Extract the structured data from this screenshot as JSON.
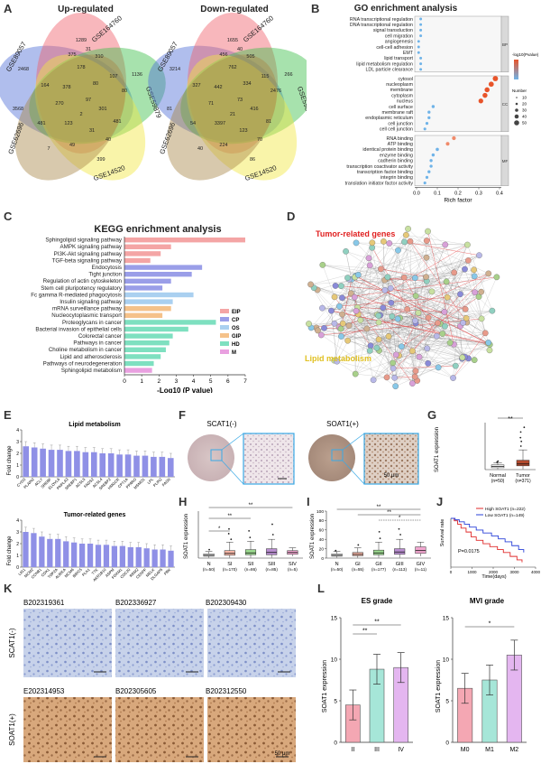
{
  "panels": {
    "A": {
      "label": "A",
      "up_title": "Up-regulated",
      "down_title": "Down-regulated",
      "set_names": [
        "GSE89057",
        "GSE164760",
        "GSE59879",
        "GSE14520",
        "GSE62696"
      ],
      "up_counts": [
        "1289",
        "2468",
        "375",
        "310",
        "31",
        "1136",
        "178",
        "107",
        "80",
        "164",
        "378",
        "80",
        "3568",
        "270",
        "97",
        "301",
        "481",
        "481",
        "123",
        "31",
        "40",
        "399",
        "49",
        "7",
        "2"
      ],
      "down_counts": [
        "1655",
        "3214",
        "456",
        "505",
        "40",
        "266",
        "762",
        "115",
        "2476",
        "327",
        "442",
        "334",
        "81",
        "71",
        "73",
        "416",
        "81",
        "54",
        "3397",
        "123",
        "70",
        "86",
        "224",
        "40",
        "21"
      ]
    },
    "B": {
      "label": "B",
      "title": "GO enrichment analysis",
      "xlabel": "Rich factor",
      "terms": [
        "RNA transcriptional regulation",
        "DNA transcriptional regulation",
        "signal transduction",
        "cell migration",
        "angiogenesis",
        "cell-cell adhesion",
        "EMT",
        "lipid transport",
        "lipid metabolism regulation",
        "LDL particle clearance",
        "cytosol",
        "nucleoplasm",
        "membrane",
        "cytoplasm",
        "nucleus",
        "cell surface",
        "membrane raft",
        "endoplasmic reticulum",
        "cell junction",
        "cell cell junction",
        "RNA binding",
        "ATP binding",
        "identical protein binding",
        "enzyme binding",
        "cadherin binding",
        "transcription coactivator activity",
        "transcription factor binding",
        "integrin binding",
        "translation initiator factor activity"
      ],
      "ticks": [
        "0.0",
        "0.1",
        "0.2",
        "0.3",
        "0.4"
      ],
      "groups": [
        "BP",
        "CC",
        "MF"
      ],
      "legend_title_p": "-log10(Pvalue)",
      "legend_title_n": "Number",
      "legend_numbers": [
        "10",
        "20",
        "30",
        "40",
        "50"
      ]
    },
    "C": {
      "label": "C",
      "title": "KEGG enrichment analysis",
      "xlabel": "-Log10 (P value)",
      "ticks": [
        "0",
        "1",
        "2",
        "3",
        "4",
        "5",
        "6",
        "7"
      ],
      "legend": [
        {
          "name": "EIP",
          "color": "#f4a5a5"
        },
        {
          "name": "CP",
          "color": "#9a9ee8"
        },
        {
          "name": "OS",
          "color": "#aad0f0"
        },
        {
          "name": "GIP",
          "color": "#f5c28a"
        },
        {
          "name": "HD",
          "color": "#7ee0c0"
        },
        {
          "name": "M",
          "color": "#e9a0e0"
        }
      ]
    },
    "D": {
      "label": "D",
      "tumor_label": "Tumor-related genes",
      "lipid_label": "Lipid metabolism"
    },
    "E": {
      "label": "E",
      "title1": "Lipid metabolism",
      "title2": "Tumor-related genes",
      "ylabel": "Fold change",
      "yticks1": [
        "0",
        "1",
        "2",
        "3",
        "4"
      ],
      "yticks2": [
        "0",
        "1",
        "2",
        "3",
        "4"
      ]
    },
    "F": {
      "label": "F",
      "neg_label": "SCAT1(-)",
      "pos_label": "SOAT1(+)",
      "scale": "50 μm"
    },
    "G": {
      "label": "G",
      "ylabel": "SOAT1 expression",
      "sig": "**",
      "groups": [
        "Normal\n(n=50)",
        "Tumor\n(n=371)"
      ],
      "group_names": [
        "Normal",
        "Tumor"
      ],
      "group_ns": [
        "(n=50)",
        "(n=371)"
      ]
    },
    "H": {
      "label": "H",
      "ylabel": "SOAT1 expression",
      "group_names": [
        "N",
        "SI",
        "SII",
        "SIII",
        "SIV"
      ],
      "group_ns": [
        "(n=50)",
        "(n=170)",
        "(n=86)",
        "(n=85)",
        "(n=5)"
      ],
      "sigs": [
        "**",
        "**",
        "*"
      ]
    },
    "I": {
      "label": "I",
      "ylabel": "SOAT1 expression",
      "group_names": [
        "N",
        "GI",
        "GII",
        "GIII",
        "GIV"
      ],
      "group_ns": [
        "(n=50)",
        "(n=55)",
        "(n=177)",
        "(n=113)",
        "(n=11)"
      ],
      "sigs": [
        "**",
        "**",
        "*"
      ],
      "yticks": [
        "0",
        "20",
        "40",
        "60",
        "80",
        "100"
      ]
    },
    "J": {
      "label": "J",
      "ylabel": "Survival rate",
      "xlabel": "Time(days)",
      "legend_high": "High SOAT1 (n=222)",
      "legend_low": "Low SOAT1 (n=149)",
      "pvalue": "P=0.0175",
      "xticks": [
        "0",
        "1000",
        "2000",
        "3000",
        "4000"
      ]
    },
    "K": {
      "label": "K",
      "row_neg": "SCAT1(-)",
      "row_pos": "SOAT1(+)",
      "ids_top": [
        "B202319361",
        "B202336927",
        "B202309430"
      ],
      "ids_bottom": [
        "E202314953",
        "B202305605",
        "B202312550"
      ],
      "scale": "50 μm"
    },
    "L": {
      "label": "L",
      "title1": "ES grade",
      "title2": "MVI grade",
      "ylabel": "SOAT1 expression",
      "cats1": [
        "II",
        "III",
        "IV"
      ],
      "cats2": [
        "M0",
        "M1",
        "M2"
      ],
      "sig1": [
        "**",
        "**"
      ],
      "sig2": [
        "*"
      ],
      "yticks": [
        "0",
        "5",
        "10",
        "15"
      ]
    }
  },
  "chart_data": [
    {
      "type": "bar",
      "id": "C",
      "title": "KEGG enrichment analysis",
      "xlabel": "-Log10 (P value)",
      "orientation": "horizontal",
      "categories": [
        "Sphingolipid signaling pathway",
        "AMPK signaling pathway",
        "PI3K-Akt signaling pathway",
        "TGF-beta signaling pathway",
        "Endocytosis",
        "Tight junction",
        "Regulation of actin cytoskeleton",
        "Stem cell pluripotency regulatory",
        "Fc gamma R-mediated phagocytosis",
        "Insulin signaling pathway",
        "mRNA surveillance pathway",
        "Nucleocytoplasmic transport",
        "Proteoglycans in cancer",
        "Bacterial invasion of epithelial cells",
        "Colorectal cancer",
        "Pathways in cancer",
        "Choline metabolism in cancer",
        "Lipid and atherosclerosis",
        "Pathways of neurodegeneration",
        "Sphingolipid metabolism"
      ],
      "values": [
        7.0,
        2.7,
        2.1,
        1.5,
        4.5,
        3.9,
        2.7,
        2.2,
        4.0,
        2.8,
        2.7,
        2.2,
        5.3,
        3.7,
        2.8,
        2.6,
        2.4,
        2.1,
        1.7,
        1.6
      ],
      "groups": [
        "EIP",
        "EIP",
        "EIP",
        "EIP",
        "CP",
        "CP",
        "CP",
        "CP",
        "OS",
        "OS",
        "GIP",
        "GIP",
        "HD",
        "HD",
        "HD",
        "HD",
        "HD",
        "HD",
        "HD",
        "M"
      ],
      "xlim": [
        0,
        7
      ]
    },
    {
      "type": "scatter",
      "id": "B",
      "title": "GO enrichment analysis",
      "xlabel": "Rich factor",
      "categories": [
        "RNA transcriptional regulation",
        "DNA transcriptional regulation",
        "signal transduction",
        "cell migration",
        "angiogenesis",
        "cell-cell adhesion",
        "EMT",
        "lipid transport",
        "lipid metabolism regulation",
        "LDL particle clearance",
        "cytosol",
        "nucleoplasm",
        "membrane",
        "cytoplasm",
        "nucleus",
        "cell surface",
        "membrane raft",
        "endoplasmic reticulum",
        "cell junction",
        "cell cell junction",
        "RNA binding",
        "ATP binding",
        "identical protein binding",
        "enzyme binding",
        "cadherin binding",
        "transcription coactivator activity",
        "transcription factor binding",
        "integrin binding",
        "translation initiator factor activity"
      ],
      "x": [
        0.02,
        0.02,
        0.02,
        0.02,
        0.01,
        0.01,
        0.01,
        0.02,
        0.02,
        0.02,
        0.38,
        0.36,
        0.34,
        0.33,
        0.31,
        0.08,
        0.06,
        0.06,
        0.05,
        0.04,
        0.18,
        0.15,
        0.1,
        0.08,
        0.07,
        0.07,
        0.06,
        0.05,
        0.04
      ],
      "xlim": [
        0.0,
        0.4
      ]
    },
    {
      "type": "bar",
      "id": "E1",
      "title": "Lipid metabolism",
      "ylabel": "Fold change",
      "categories": [
        "CYGS",
        "PLAIN2",
        "ACLY",
        "SREBF",
        "ELOVL6",
        "PNPLA3",
        "SREBP1",
        "ACSL5",
        "FADS2",
        "ACSL4",
        "SREBP2",
        "HMGCR",
        "CPT1A",
        "PPARG",
        "MSMO1",
        "LPL",
        "PLIN2",
        "FASN"
      ],
      "values": [
        2.6,
        2.5,
        2.4,
        2.3,
        2.3,
        2.2,
        2.2,
        2.1,
        2.1,
        2.0,
        2.0,
        1.9,
        1.9,
        1.8,
        1.8,
        1.7,
        1.7,
        1.6
      ],
      "ylim": [
        0,
        4
      ]
    },
    {
      "type": "bar",
      "id": "E2",
      "title": "Tumor-related genes",
      "ylabel": "Fold change",
      "categories": [
        "LIG1",
        "MCM2",
        "CCNB1",
        "CDK1",
        "TOP2A",
        "AURKA",
        "MCM6",
        "BIRC5",
        "PLK1",
        "TTK",
        "AKR1B10",
        "ASPM",
        "FOXM1",
        "CDC20",
        "RRM2",
        "CENPF",
        "MELK",
        "DLGAP5",
        "PBK"
      ],
      "values": [
        3.0,
        2.9,
        2.6,
        2.4,
        2.4,
        2.2,
        2.1,
        2.0,
        2.0,
        1.9,
        1.9,
        1.8,
        1.8,
        1.7,
        1.7,
        1.6,
        1.5,
        1.5,
        1.4
      ],
      "ylim": [
        0,
        4
      ]
    },
    {
      "type": "bar",
      "id": "L1",
      "title": "ES grade",
      "ylabel": "SOAT1 expression",
      "categories": [
        "II",
        "III",
        "IV"
      ],
      "values": [
        4.5,
        8.8,
        9.0
      ],
      "ylim": [
        0,
        15
      ]
    },
    {
      "type": "bar",
      "id": "L2",
      "title": "MVI grade",
      "ylabel": "SOAT1 expression",
      "categories": [
        "M0",
        "M1",
        "M2"
      ],
      "values": [
        6.5,
        7.5,
        10.5
      ],
      "ylim": [
        0,
        15
      ]
    }
  ]
}
